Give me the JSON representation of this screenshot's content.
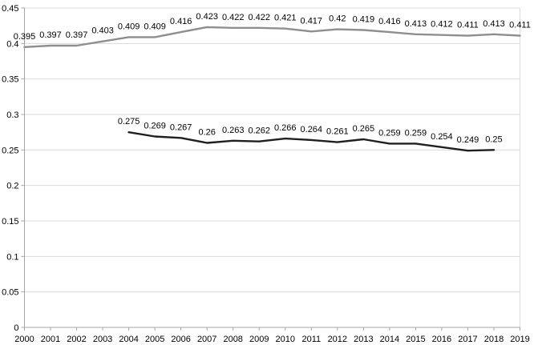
{
  "chart_data": {
    "type": "line",
    "title": "",
    "xlabel": "",
    "ylabel": "",
    "categories": [
      "2000",
      "2001",
      "2002",
      "2003",
      "2004",
      "2005",
      "2006",
      "2007",
      "2008",
      "2009",
      "2010",
      "2011",
      "2012",
      "2013",
      "2014",
      "2015",
      "2016",
      "2017",
      "2018",
      "2019"
    ],
    "series": [
      {
        "name": "upper-gray-series",
        "color": "#8e8e8e",
        "start_index": 0,
        "values": [
          0.395,
          0.397,
          0.397,
          0.403,
          0.409,
          0.409,
          0.416,
          0.423,
          0.422,
          0.422,
          0.421,
          0.417,
          0.42,
          0.419,
          0.416,
          0.413,
          0.412,
          0.411,
          0.413,
          0.411
        ],
        "labels": [
          "0.395",
          "0.397",
          "0.397",
          "0.403",
          "0.409",
          "0.409",
          "0.416",
          "0.423",
          "0.422",
          "0.422",
          "0.421",
          "0.417",
          "0.42",
          "0.419",
          "0.416",
          "0.413",
          "0.412",
          "0.411",
          "0.413",
          "0.411"
        ]
      },
      {
        "name": "lower-black-series",
        "color": "#1f1f1f",
        "start_index": 4,
        "values": [
          0.275,
          0.269,
          0.267,
          0.26,
          0.263,
          0.262,
          0.266,
          0.264,
          0.261,
          0.265,
          0.259,
          0.259,
          0.254,
          0.249,
          0.25
        ],
        "labels": [
          "0.275",
          "0.269",
          "0.267",
          "0.26",
          "0.263",
          "0.262",
          "0.266",
          "0.264",
          "0.261",
          "0.265",
          "0.259",
          "0.259",
          "0.254",
          "0.249",
          "0.25"
        ]
      }
    ],
    "ylim": [
      0,
      0.45
    ],
    "ytick_step": 0.05,
    "ytick_labels": [
      "0",
      "0.05",
      "0.1",
      "0.15",
      "0.2",
      "0.25",
      "0.3",
      "0.35",
      "0.4",
      "0.45"
    ],
    "grid": true,
    "legend_position": "none",
    "data_labels": true,
    "colors": {
      "gridline": "#d9d9d9",
      "axis": "#a6a6a6",
      "plot_border": "#d9d9d9",
      "text": "#000000",
      "background": "#ffffff"
    }
  }
}
